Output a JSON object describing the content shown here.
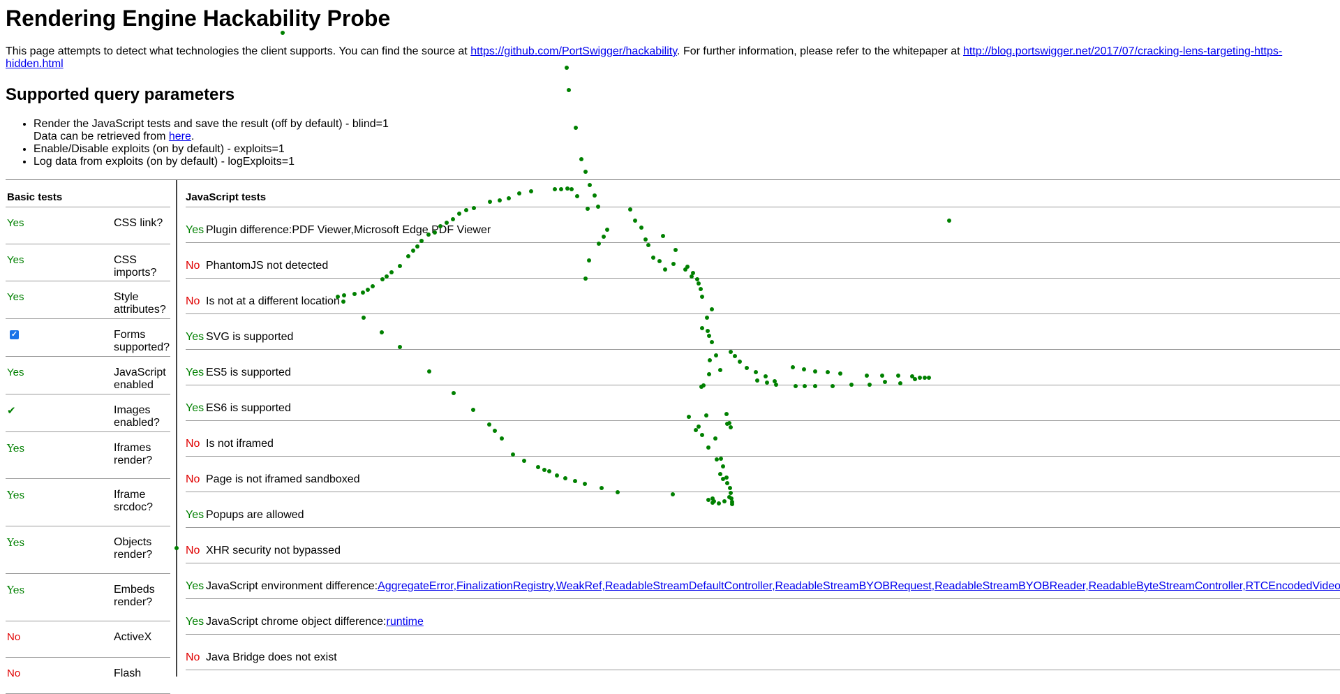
{
  "page_title": "Rendering Engine Hackability Probe",
  "intro": {
    "text1": "This page attempts to detect what technologies the client supports. You can find the source at ",
    "link1": "https://github.com/PortSwigger/hackability",
    "text2": ". For further information, please refer to the whitepaper at ",
    "link2": "http://blog.portswigger.net/2017/07/cracking-lens-targeting-https-hidden.html"
  },
  "params": {
    "heading": "Supported query parameters",
    "item1": "Render the JavaScript tests and save the result (off by default) - blind=1",
    "item1_sub": "Data can be retrieved from ",
    "item1_link": "here",
    "item1_end": ".",
    "item2": "Enable/Disable exploits (on by default) - exploits=1",
    "item3": "Log data from exploits (on by default) - logExploits=1"
  },
  "basic": {
    "header": "Basic tests",
    "rows": [
      {
        "result": "Yes",
        "label": "CSS link?"
      },
      {
        "result": "Yes",
        "label": "CSS imports?"
      },
      {
        "result": "Yes",
        "label": "Style attributes?"
      },
      {
        "result": "checkbox",
        "label": "Forms supported?"
      },
      {
        "result": "Yes",
        "label": "JavaScript enabled"
      },
      {
        "result": "✔",
        "label": "Images enabled?"
      },
      {
        "result": "Yes",
        "label": "Iframes render?"
      },
      {
        "result": "Yes",
        "label": "Iframe srcdoc?"
      },
      {
        "result": "Yes",
        "label": "Objects render?"
      },
      {
        "result": "Yes",
        "label": "Embeds render?"
      },
      {
        "result": "No",
        "label": "ActiveX"
      },
      {
        "result": "No",
        "label": "Flash"
      }
    ]
  },
  "js": {
    "header": "JavaScript tests",
    "rows": [
      {
        "result": "Yes",
        "text": "Plugin difference:PDF Viewer,Microsoft Edge PDF Viewer"
      },
      {
        "result": "No",
        "text": "PhantomJS not detected"
      },
      {
        "result": "No",
        "text": "Is not at a different location"
      },
      {
        "result": "Yes",
        "text": "SVG is supported"
      },
      {
        "result": "Yes",
        "text": "ES5 is supported"
      },
      {
        "result": "Yes",
        "text": "ES6 is supported"
      },
      {
        "result": "No",
        "text": "Is not iframed"
      },
      {
        "result": "No",
        "text": "Page is not iframed sandboxed"
      },
      {
        "result": "Yes",
        "text": "Popups are allowed"
      },
      {
        "result": "No",
        "text": "XHR security not bypassed"
      },
      {
        "result": "Yes",
        "text": "JavaScript environment difference:",
        "link": "AggregateError,FinalizationRegistry,WeakRef,ReadableStreamDefaultController,ReadableStreamBYOBRequest,ReadableStreamBYOBReader,ReadableByteStreamController,RTCEncodedVideoFrame"
      },
      {
        "result": "Yes",
        "text": "JavaScript chrome object difference:",
        "link": "runtime"
      },
      {
        "result": "No",
        "text": "Java Bridge does not exist"
      }
    ]
  },
  "colors": {
    "yes": "#008000",
    "no": "#e00000",
    "link": "#0000ee",
    "dot": "#008000"
  }
}
